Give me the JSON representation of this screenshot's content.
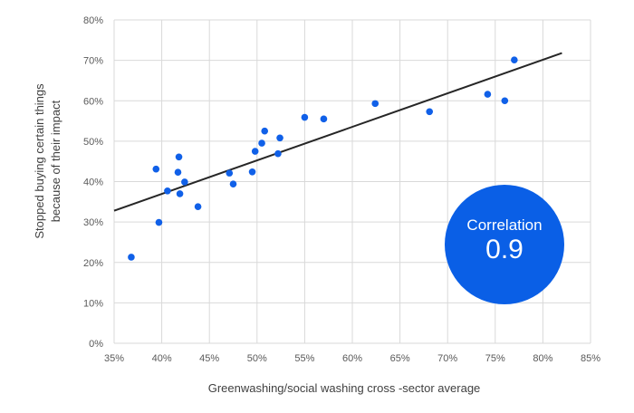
{
  "chart_data": {
    "type": "scatter",
    "xlabel": "Greenwashing/social washing cross -sector average",
    "ylabel_lines": [
      "Stopped buying certain things",
      "because of their impact"
    ],
    "xlim": [
      0.35,
      0.85
    ],
    "ylim": [
      0,
      0.8
    ],
    "x_ticks": [
      0.35,
      0.4,
      0.45,
      0.5,
      0.55,
      0.6,
      0.65,
      0.7,
      0.75,
      0.8,
      0.85
    ],
    "x_tick_labels": [
      "35%",
      "40%",
      "45%",
      "50%",
      "55%",
      "60%",
      "65%",
      "70%",
      "75%",
      "80%",
      "85%"
    ],
    "y_ticks": [
      0,
      0.1,
      0.2,
      0.3,
      0.4,
      0.5,
      0.6,
      0.7,
      0.8
    ],
    "y_tick_labels": [
      "0%",
      "10%",
      "20%",
      "30%",
      "40%",
      "50%",
      "60%",
      "70%",
      "80%"
    ],
    "grid": "vertical and horizontal",
    "points": [
      {
        "x": 0.368,
        "y": 0.213
      },
      {
        "x": 0.394,
        "y": 0.431
      },
      {
        "x": 0.397,
        "y": 0.299
      },
      {
        "x": 0.406,
        "y": 0.377
      },
      {
        "x": 0.417,
        "y": 0.423
      },
      {
        "x": 0.418,
        "y": 0.461
      },
      {
        "x": 0.419,
        "y": 0.37
      },
      {
        "x": 0.424,
        "y": 0.399
      },
      {
        "x": 0.438,
        "y": 0.338
      },
      {
        "x": 0.471,
        "y": 0.421
      },
      {
        "x": 0.475,
        "y": 0.394
      },
      {
        "x": 0.495,
        "y": 0.424
      },
      {
        "x": 0.498,
        "y": 0.475
      },
      {
        "x": 0.505,
        "y": 0.495
      },
      {
        "x": 0.508,
        "y": 0.525
      },
      {
        "x": 0.522,
        "y": 0.469
      },
      {
        "x": 0.524,
        "y": 0.508
      },
      {
        "x": 0.55,
        "y": 0.559
      },
      {
        "x": 0.57,
        "y": 0.555
      },
      {
        "x": 0.624,
        "y": 0.593
      },
      {
        "x": 0.681,
        "y": 0.573
      },
      {
        "x": 0.742,
        "y": 0.616
      },
      {
        "x": 0.76,
        "y": 0.6
      },
      {
        "x": 0.77,
        "y": 0.701
      }
    ],
    "trendline": {
      "x": [
        0.35,
        0.82
      ],
      "y": [
        0.328,
        0.718
      ]
    },
    "point_color": "#1060e8",
    "trendline_color": "#262626",
    "annotation": {
      "label": "Correlation",
      "value": "0.9",
      "color": "#0a5fe6"
    }
  }
}
